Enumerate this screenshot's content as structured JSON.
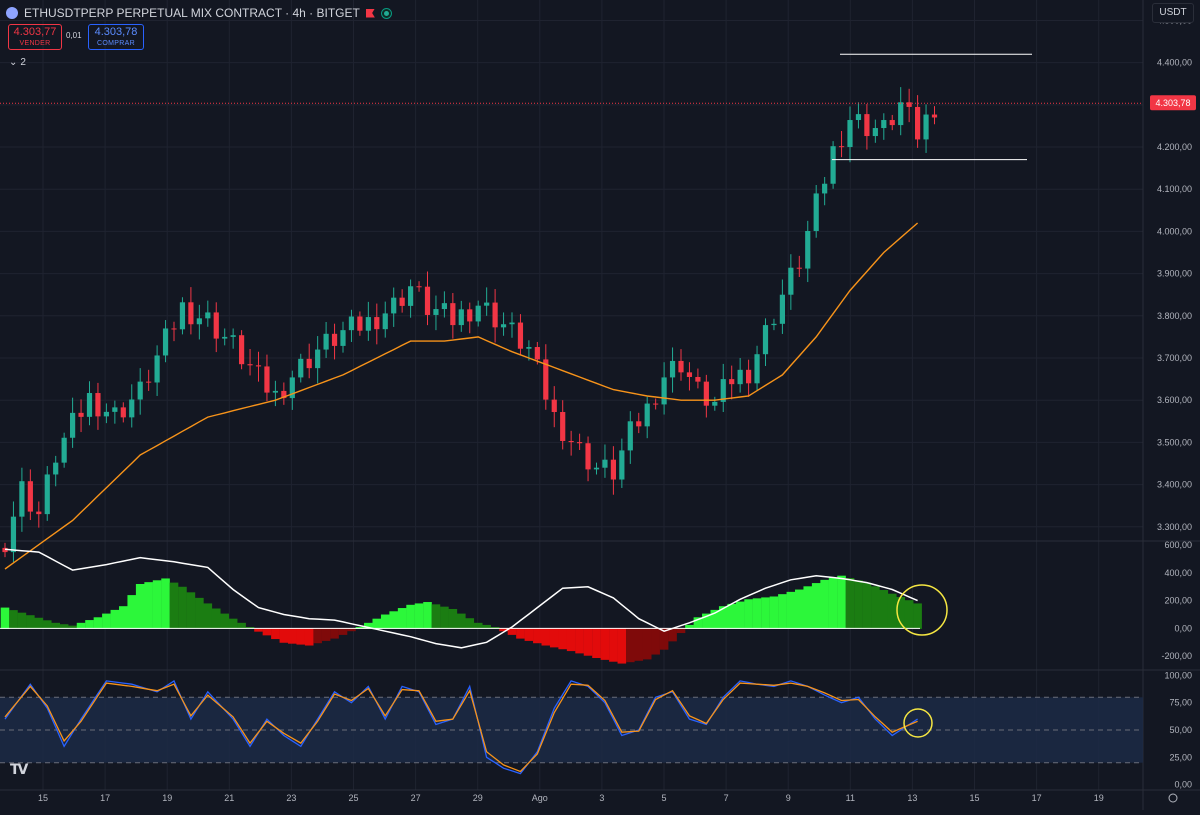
{
  "header": {
    "title": "ETHUSDTPERP PERPETUAL MIX CONTRACT · 4h · BITGET",
    "sell_price": "4.303,77",
    "sell_label": "VENDER",
    "spread": "0,01",
    "buy_price": "4.303,78",
    "buy_label": "COMPRAR",
    "indicators_toggle": "2",
    "currency": "USDT"
  },
  "colors": {
    "background": "#131722",
    "up_candle": "#22ab94",
    "down_candle": "#f23645",
    "moving_average": "#f7931a",
    "macd_line": "#ffffff",
    "histogram_bright_green": "#2cf73a",
    "histogram_dark_green": "#1b7d12",
    "histogram_bright_red": "#e20b0b",
    "histogram_dark_red": "#7f0a0a",
    "stoch_k": "#2962ff",
    "stoch_d": "#f7931a",
    "highlight_circle": "#f5e642"
  },
  "chart_data": [
    {
      "type": "candlestick",
      "symbol": "ETHUSDTPERP",
      "timeframe": "4h",
      "y_ticks": [
        "4.500,00",
        "4.400,00",
        "4.300,00",
        "4.200,00",
        "4.100,00",
        "4.000,00",
        "3.900,00",
        "3.800,00",
        "3.700,00",
        "3.600,00",
        "3.500,00",
        "3.400,00",
        "3.300,00"
      ],
      "ylim": [
        3290,
        4520
      ],
      "last_price": 4303.78,
      "last_price_label": "4.303,78",
      "x_ticks": [
        "15",
        "17",
        "19",
        "21",
        "23",
        "25",
        "27",
        "29",
        "Ago",
        "3",
        "5",
        "7",
        "9",
        "11",
        "13",
        "15",
        "17",
        "19"
      ],
      "close_anchors": [
        [
          0,
          3270
        ],
        [
          2,
          3390
        ],
        [
          4,
          3330
        ],
        [
          6,
          3470
        ],
        [
          8,
          3540
        ],
        [
          10,
          3605
        ],
        [
          13,
          3565
        ],
        [
          16,
          3620
        ],
        [
          18,
          3700
        ],
        [
          21,
          3820
        ],
        [
          24,
          3790
        ],
        [
          27,
          3730
        ],
        [
          30,
          3650
        ],
        [
          32,
          3610
        ],
        [
          34,
          3660
        ],
        [
          37,
          3720
        ],
        [
          40,
          3760
        ],
        [
          43,
          3785
        ],
        [
          46,
          3825
        ],
        [
          48,
          3870
        ],
        [
          50,
          3820
        ],
        [
          53,
          3790
        ],
        [
          56,
          3830
        ],
        [
          59,
          3780
        ],
        [
          62,
          3720
        ],
        [
          65,
          3560
        ],
        [
          68,
          3480
        ],
        [
          70,
          3440
        ],
        [
          72,
          3430
        ],
        [
          74,
          3520
        ],
        [
          76,
          3580
        ],
        [
          78,
          3660
        ],
        [
          80,
          3690
        ],
        [
          82,
          3620
        ],
        [
          84,
          3590
        ],
        [
          86,
          3650
        ],
        [
          88,
          3670
        ],
        [
          90,
          3760
        ],
        [
          92,
          3850
        ],
        [
          94,
          3930
        ],
        [
          96,
          4060
        ],
        [
          98,
          4190
        ],
        [
          100,
          4270
        ],
        [
          102,
          4250
        ],
        [
          104,
          4240
        ],
        [
          106,
          4300
        ],
        [
          108,
          4230
        ],
        [
          110,
          4300
        ]
      ],
      "moving_average": [
        [
          0,
          3200
        ],
        [
          8,
          3315
        ],
        [
          16,
          3470
        ],
        [
          24,
          3560
        ],
        [
          32,
          3600
        ],
        [
          40,
          3660
        ],
        [
          48,
          3740
        ],
        [
          52,
          3740
        ],
        [
          56,
          3750
        ],
        [
          60,
          3715
        ],
        [
          66,
          3670
        ],
        [
          72,
          3625
        ],
        [
          76,
          3610
        ],
        [
          80,
          3600
        ],
        [
          84,
          3600
        ],
        [
          88,
          3610
        ],
        [
          92,
          3660
        ],
        [
          96,
          3750
        ],
        [
          100,
          3860
        ],
        [
          104,
          3950
        ],
        [
          108,
          4020
        ]
      ],
      "range_lines": [
        4420,
        4170
      ]
    },
    {
      "type": "histogram",
      "name_hint": "MACD",
      "y_ticks": [
        "600,00",
        "400,00",
        "200,00",
        "0,00",
        "-200,00"
      ],
      "ylim": [
        -300,
        630
      ],
      "histogram": [
        [
          0,
          150
        ],
        [
          6,
          40
        ],
        [
          8,
          20
        ],
        [
          11,
          80
        ],
        [
          14,
          160
        ],
        [
          16,
          320
        ],
        [
          19,
          360
        ],
        [
          21,
          300
        ],
        [
          24,
          180
        ],
        [
          27,
          70
        ],
        [
          30,
          -20
        ],
        [
          33,
          -100
        ],
        [
          36,
          -120
        ],
        [
          39,
          -70
        ],
        [
          42,
          10
        ],
        [
          45,
          100
        ],
        [
          48,
          170
        ],
        [
          50,
          190
        ],
        [
          53,
          140
        ],
        [
          56,
          40
        ],
        [
          58,
          10
        ],
        [
          61,
          -70
        ],
        [
          64,
          -120
        ],
        [
          67,
          -160
        ],
        [
          70,
          -210
        ],
        [
          73,
          -250
        ],
        [
          76,
          -220
        ],
        [
          78,
          -150
        ],
        [
          80,
          -30
        ],
        [
          82,
          80
        ],
        [
          85,
          160
        ],
        [
          88,
          210
        ],
        [
          91,
          230
        ],
        [
          94,
          280
        ],
        [
          97,
          350
        ],
        [
          99,
          380
        ],
        [
          102,
          330
        ],
        [
          105,
          250
        ],
        [
          108,
          180
        ]
      ],
      "signal_line": [
        [
          0,
          570
        ],
        [
          4,
          550
        ],
        [
          8,
          420
        ],
        [
          12,
          460
        ],
        [
          16,
          510
        ],
        [
          20,
          480
        ],
        [
          24,
          440
        ],
        [
          27,
          280
        ],
        [
          30,
          150
        ],
        [
          33,
          100
        ],
        [
          36,
          70
        ],
        [
          39,
          60
        ],
        [
          42,
          20
        ],
        [
          45,
          -20
        ],
        [
          48,
          -60
        ],
        [
          51,
          -110
        ],
        [
          54,
          -140
        ],
        [
          57,
          -100
        ],
        [
          60,
          10
        ],
        [
          63,
          150
        ],
        [
          66,
          290
        ],
        [
          69,
          300
        ],
        [
          72,
          220
        ],
        [
          75,
          70
        ],
        [
          78,
          -20
        ],
        [
          81,
          40
        ],
        [
          84,
          110
        ],
        [
          87,
          210
        ],
        [
          90,
          290
        ],
        [
          93,
          350
        ],
        [
          96,
          380
        ],
        [
          99,
          360
        ],
        [
          102,
          330
        ],
        [
          105,
          280
        ],
        [
          108,
          200
        ]
      ]
    },
    {
      "type": "line",
      "name_hint": "Stochastic RSI",
      "y_ticks": [
        "100,00",
        "75,00",
        "50,00",
        "25,00",
        "0,00"
      ],
      "ylim": [
        -5,
        105
      ],
      "bands": [
        80,
        50,
        20
      ],
      "k": [
        [
          0,
          60
        ],
        [
          3,
          92
        ],
        [
          5,
          70
        ],
        [
          7,
          35
        ],
        [
          9,
          60
        ],
        [
          12,
          95
        ],
        [
          15,
          92
        ],
        [
          18,
          85
        ],
        [
          20,
          95
        ],
        [
          22,
          60
        ],
        [
          24,
          85
        ],
        [
          27,
          60
        ],
        [
          29,
          35
        ],
        [
          31,
          60
        ],
        [
          33,
          45
        ],
        [
          35,
          35
        ],
        [
          37,
          60
        ],
        [
          39,
          85
        ],
        [
          41,
          75
        ],
        [
          43,
          90
        ],
        [
          45,
          60
        ],
        [
          47,
          90
        ],
        [
          49,
          85
        ],
        [
          51,
          55
        ],
        [
          53,
          60
        ],
        [
          55,
          90
        ],
        [
          57,
          25
        ],
        [
          59,
          15
        ],
        [
          61,
          10
        ],
        [
          63,
          30
        ],
        [
          65,
          70
        ],
        [
          67,
          95
        ],
        [
          69,
          90
        ],
        [
          71,
          75
        ],
        [
          73,
          45
        ],
        [
          75,
          50
        ],
        [
          77,
          80
        ],
        [
          79,
          85
        ],
        [
          81,
          60
        ],
        [
          83,
          55
        ],
        [
          85,
          80
        ],
        [
          87,
          95
        ],
        [
          89,
          92
        ],
        [
          91,
          90
        ],
        [
          93,
          95
        ],
        [
          95,
          90
        ],
        [
          97,
          82
        ],
        [
          99,
          75
        ],
        [
          101,
          80
        ],
        [
          103,
          60
        ],
        [
          105,
          45
        ],
        [
          108,
          60
        ]
      ],
      "d": [
        [
          0,
          62
        ],
        [
          3,
          90
        ],
        [
          5,
          72
        ],
        [
          7,
          40
        ],
        [
          9,
          58
        ],
        [
          12,
          93
        ],
        [
          15,
          90
        ],
        [
          18,
          86
        ],
        [
          20,
          92
        ],
        [
          22,
          63
        ],
        [
          24,
          82
        ],
        [
          27,
          62
        ],
        [
          29,
          38
        ],
        [
          31,
          58
        ],
        [
          33,
          47
        ],
        [
          35,
          38
        ],
        [
          37,
          58
        ],
        [
          39,
          83
        ],
        [
          41,
          77
        ],
        [
          43,
          88
        ],
        [
          45,
          63
        ],
        [
          47,
          87
        ],
        [
          49,
          86
        ],
        [
          51,
          58
        ],
        [
          53,
          60
        ],
        [
          55,
          86
        ],
        [
          57,
          30
        ],
        [
          59,
          18
        ],
        [
          61,
          12
        ],
        [
          63,
          28
        ],
        [
          65,
          66
        ],
        [
          67,
          92
        ],
        [
          69,
          91
        ],
        [
          71,
          77
        ],
        [
          73,
          48
        ],
        [
          75,
          49
        ],
        [
          77,
          78
        ],
        [
          79,
          86
        ],
        [
          81,
          63
        ],
        [
          83,
          56
        ],
        [
          85,
          78
        ],
        [
          87,
          93
        ],
        [
          89,
          92
        ],
        [
          91,
          91
        ],
        [
          93,
          93
        ],
        [
          95,
          90
        ],
        [
          97,
          84
        ],
        [
          99,
          77
        ],
        [
          101,
          78
        ],
        [
          103,
          62
        ],
        [
          105,
          48
        ],
        [
          108,
          58
        ]
      ]
    }
  ]
}
